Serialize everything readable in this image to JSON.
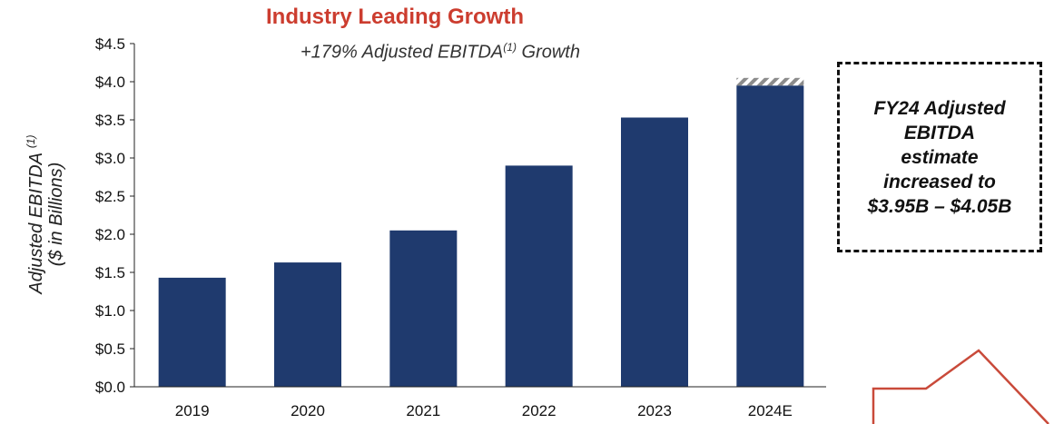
{
  "chart_data": {
    "type": "bar",
    "title": "Industry Leading Growth",
    "subtitle_main": "+179% Adjusted EBITDA",
    "subtitle_sup": "(1)",
    "subtitle_end": " Growth",
    "ylabel_main": "Adjusted EBITDA ",
    "ylabel_sup": "(1)",
    "ylabel_line2": "($ in Billions)",
    "categories": [
      "2019",
      "2020",
      "2021",
      "2022",
      "2023",
      "2024E"
    ],
    "series": [
      {
        "values": [
          1.43,
          1.63,
          2.05,
          2.9,
          3.53,
          3.95
        ]
      }
    ],
    "estimate_range_top": 4.05,
    "ylim": [
      0,
      4.5
    ],
    "yticks": [
      "$0.0",
      "$0.5",
      "$1.0",
      "$1.5",
      "$2.0",
      "$2.5",
      "$3.0",
      "$3.5",
      "$4.0",
      "$4.5"
    ],
    "grid": false,
    "bar_color": "#1f3a6e"
  },
  "callout": {
    "text": "FY24 Adjusted EBITDA estimate increased to $3.95B – $4.05B"
  },
  "colors": {
    "title": "#cc3d2f",
    "arrow": "#c94a3a"
  }
}
